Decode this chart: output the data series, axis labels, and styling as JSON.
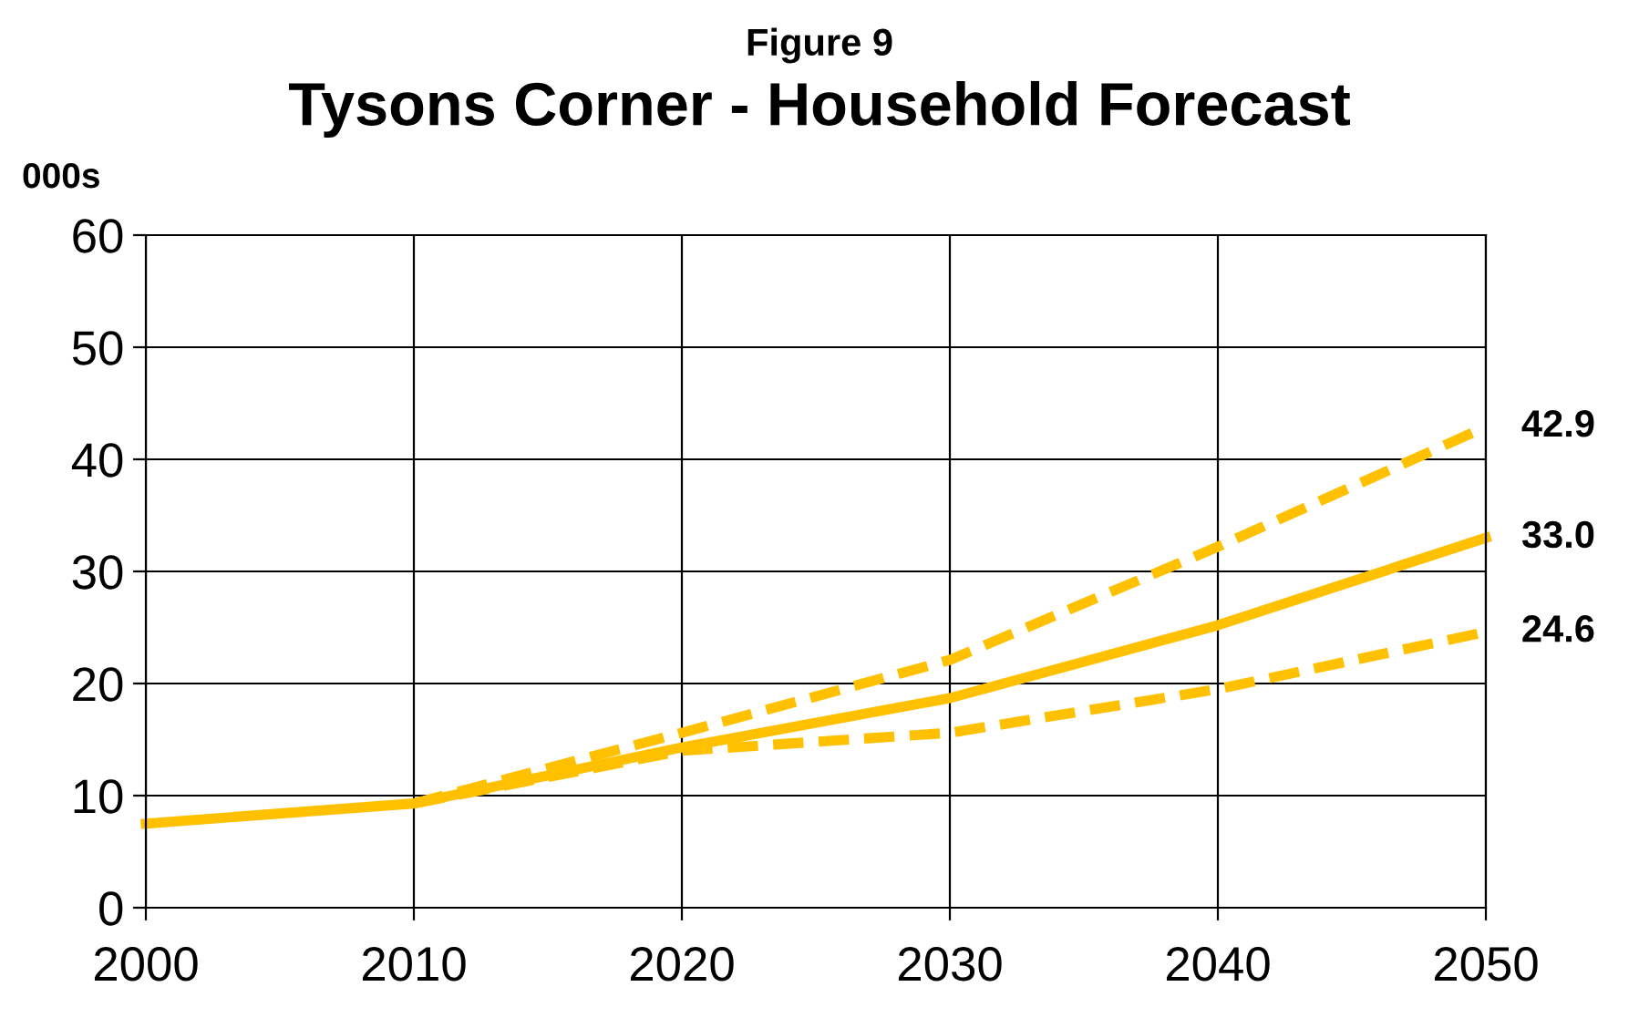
{
  "chart_data": {
    "type": "line",
    "title": "Tysons Corner - Household Forecast",
    "subtitle": "Figure 9",
    "ylabel": "000s",
    "x": [
      2000,
      2010,
      2020,
      2030,
      2040,
      2050
    ],
    "series": [
      {
        "color": "#ffc000",
        "line_style": "solid",
        "values": [
          7.5,
          9.3,
          14.3,
          18.7,
          25.2,
          33.0
        ],
        "value_labels": [
          null,
          null,
          null,
          null,
          null,
          "33.0"
        ]
      },
      {
        "color": "#ffc000",
        "line_style": "dashed",
        "values": [
          null,
          9.3,
          15.6,
          22.1,
          32.2,
          42.9
        ],
        "value_labels": [
          null,
          null,
          null,
          null,
          null,
          "42.9"
        ]
      },
      {
        "color": "#ffc000",
        "line_style": "dashed",
        "values": [
          null,
          9.3,
          14.0,
          15.6,
          19.5,
          24.6
        ],
        "value_labels": [
          null,
          null,
          null,
          null,
          null,
          "24.6"
        ]
      }
    ],
    "xlim": [
      2000,
      2050
    ],
    "xticks": [
      2000,
      2010,
      2020,
      2030,
      2040,
      2050
    ],
    "ylim": [
      0,
      60
    ],
    "yticks": [
      0,
      10,
      20,
      30,
      40,
      50,
      60
    ],
    "grid": true,
    "marker": "none"
  }
}
